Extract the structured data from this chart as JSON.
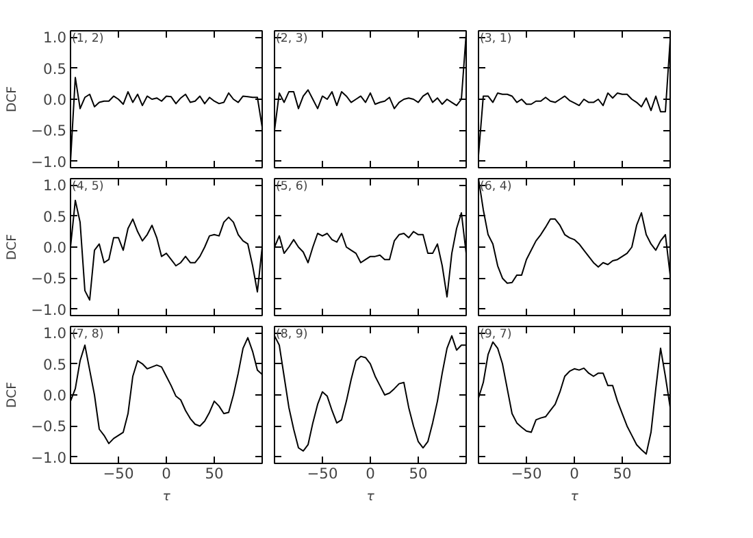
{
  "chart_data": [
    {
      "type": "line",
      "x": [
        -100,
        -95,
        -90,
        -85,
        -80,
        -75,
        -70,
        -65,
        -60,
        -55,
        -50,
        -45,
        -40,
        -35,
        -30,
        -25,
        -20,
        -15,
        -10,
        -5,
        0,
        5,
        10,
        15,
        20,
        25,
        30,
        35,
        40,
        45,
        50,
        55,
        60,
        65,
        70,
        75,
        80,
        85,
        90,
        95,
        100
      ],
      "values": [
        -1.0,
        0.35,
        -0.15,
        0.03,
        0.08,
        -0.12,
        -0.05,
        -0.03,
        -0.03,
        0.05,
        0.0,
        -0.08,
        0.12,
        -0.05,
        0.08,
        -0.1,
        0.05,
        0.0,
        0.02,
        -0.03,
        0.05,
        0.04,
        -0.07,
        0.02,
        0.08,
        -0.05,
        -0.03,
        0.05,
        -0.07,
        0.03,
        -0.03,
        -0.07,
        -0.05,
        0.1,
        0.0,
        -0.05,
        0.05,
        0.04,
        0.03,
        0.03,
        -0.45
      ],
      "color": "#000000",
      "xlim": [
        -100,
        100
      ],
      "ylim": [
        -1.1,
        1.1
      ],
      "yticks": [
        {
          "value": -1,
          "label": "−1.0"
        },
        {
          "value": -0.5,
          "label": "−0.5"
        },
        {
          "value": 0,
          "label": "0.0"
        },
        {
          "value": 0.5,
          "label": "0.5"
        },
        {
          "value": 1,
          "label": "1.0"
        }
      ],
      "xticks": [
        {
          "value": -50,
          "label": null
        },
        {
          "value": 0,
          "label": null
        },
        {
          "value": 50,
          "label": null
        }
      ],
      "ylabel": "DCF",
      "tick_labels": "y",
      "annotations": [
        "(1, 2)"
      ]
    },
    {
      "type": "line",
      "x": [
        -100,
        -95,
        -90,
        -85,
        -80,
        -75,
        -70,
        -65,
        -60,
        -55,
        -50,
        -45,
        -40,
        -35,
        -30,
        -25,
        -20,
        -15,
        -10,
        -5,
        0,
        5,
        10,
        15,
        20,
        25,
        30,
        35,
        40,
        45,
        50,
        55,
        60,
        65,
        70,
        75,
        80,
        85,
        90,
        95,
        100
      ],
      "values": [
        -0.5,
        0.1,
        -0.05,
        0.12,
        0.12,
        -0.15,
        0.05,
        0.15,
        0.0,
        -0.15,
        0.05,
        0.0,
        0.12,
        -0.1,
        0.12,
        0.05,
        -0.05,
        0.0,
        0.05,
        -0.05,
        0.1,
        -0.08,
        -0.05,
        -0.03,
        0.03,
        -0.15,
        -0.05,
        0.0,
        0.02,
        0.0,
        -0.05,
        0.05,
        0.1,
        -0.05,
        0.02,
        -0.08,
        0.0,
        -0.05,
        -0.1,
        0.0,
        1.05
      ],
      "color": "#000000",
      "xlim": [
        -100,
        100
      ],
      "ylim": [
        -1.1,
        1.1
      ],
      "yticks": [
        {
          "value": -1,
          "label": null
        },
        {
          "value": -0.5,
          "label": null
        },
        {
          "value": 0,
          "label": null
        },
        {
          "value": 0.5,
          "label": null
        },
        {
          "value": 1,
          "label": null
        }
      ],
      "xticks": [
        {
          "value": -50,
          "label": null
        },
        {
          "value": 0,
          "label": null
        },
        {
          "value": 50,
          "label": null
        }
      ],
      "tick_labels": false,
      "annotations": [
        "(2, 3)"
      ]
    },
    {
      "type": "line",
      "x": [
        -100,
        -95,
        -90,
        -85,
        -80,
        -75,
        -70,
        -65,
        -60,
        -55,
        -50,
        -45,
        -40,
        -35,
        -30,
        -25,
        -20,
        -15,
        -10,
        -5,
        0,
        5,
        10,
        15,
        20,
        25,
        30,
        35,
        40,
        45,
        50,
        55,
        60,
        65,
        70,
        75,
        80,
        85,
        90,
        95,
        100
      ],
      "values": [
        -0.9,
        0.05,
        0.05,
        -0.05,
        0.1,
        0.08,
        0.08,
        0.05,
        -0.05,
        0.0,
        -0.08,
        -0.08,
        -0.03,
        -0.03,
        0.03,
        -0.03,
        -0.05,
        0.0,
        0.05,
        -0.02,
        -0.06,
        -0.1,
        0.0,
        -0.05,
        -0.05,
        0.0,
        -0.1,
        0.1,
        0.02,
        0.1,
        0.08,
        0.08,
        0.0,
        -0.05,
        -0.12,
        0.02,
        -0.18,
        0.05,
        -0.2,
        -0.2,
        0.95
      ],
      "color": "#000000",
      "xlim": [
        -100,
        100
      ],
      "ylim": [
        -1.1,
        1.1
      ],
      "yticks": [
        {
          "value": -1,
          "label": null
        },
        {
          "value": -0.5,
          "label": null
        },
        {
          "value": 0,
          "label": null
        },
        {
          "value": 0.5,
          "label": null
        },
        {
          "value": 1,
          "label": null
        }
      ],
      "xticks": [
        {
          "value": -50,
          "label": null
        },
        {
          "value": 0,
          "label": null
        },
        {
          "value": 50,
          "label": null
        }
      ],
      "tick_labels": false,
      "annotations": [
        "(3, 1)"
      ]
    },
    {
      "type": "line",
      "x": [
        -100,
        -95,
        -90,
        -85,
        -80,
        -75,
        -70,
        -65,
        -60,
        -55,
        -50,
        -45,
        -40,
        -35,
        -30,
        -25,
        -20,
        -15,
        -10,
        -5,
        0,
        5,
        10,
        15,
        20,
        25,
        30,
        35,
        40,
        45,
        50,
        55,
        60,
        65,
        70,
        75,
        80,
        85,
        90,
        95,
        100
      ],
      "values": [
        0.0,
        0.75,
        0.4,
        -0.7,
        -0.85,
        -0.05,
        0.05,
        -0.25,
        -0.2,
        0.15,
        0.15,
        -0.05,
        0.3,
        0.45,
        0.25,
        0.1,
        0.2,
        0.35,
        0.15,
        -0.15,
        -0.1,
        -0.2,
        -0.3,
        -0.25,
        -0.15,
        -0.25,
        -0.25,
        -0.15,
        0.0,
        0.18,
        0.2,
        0.18,
        0.4,
        0.48,
        0.4,
        0.2,
        0.1,
        0.05,
        -0.3,
        -0.72,
        0.0
      ],
      "color": "#000000",
      "xlim": [
        -100,
        100
      ],
      "ylim": [
        -1.1,
        1.1
      ],
      "yticks": [
        {
          "value": -1,
          "label": "−1.0"
        },
        {
          "value": -0.5,
          "label": "−0.5"
        },
        {
          "value": 0,
          "label": "0.0"
        },
        {
          "value": 0.5,
          "label": "0.5"
        },
        {
          "value": 1,
          "label": "1.0"
        }
      ],
      "xticks": [
        {
          "value": -50,
          "label": null
        },
        {
          "value": 0,
          "label": null
        },
        {
          "value": 50,
          "label": null
        }
      ],
      "ylabel": "DCF",
      "tick_labels": "y",
      "annotations": [
        "(4, 5)"
      ]
    },
    {
      "type": "line",
      "x": [
        -100,
        -95,
        -90,
        -85,
        -80,
        -75,
        -70,
        -65,
        -60,
        -55,
        -50,
        -45,
        -40,
        -35,
        -30,
        -25,
        -20,
        -15,
        -10,
        -5,
        0,
        5,
        10,
        15,
        20,
        25,
        30,
        35,
        40,
        45,
        50,
        55,
        60,
        65,
        70,
        75,
        80,
        85,
        90,
        95,
        100
      ],
      "values": [
        0.0,
        0.18,
        -0.1,
        0.0,
        0.12,
        0.0,
        -0.08,
        -0.25,
        0.0,
        0.22,
        0.18,
        0.22,
        0.12,
        0.08,
        0.22,
        0.0,
        -0.05,
        -0.1,
        -0.25,
        -0.2,
        -0.15,
        -0.15,
        -0.13,
        -0.2,
        -0.2,
        0.1,
        0.2,
        0.22,
        0.15,
        0.25,
        0.2,
        0.2,
        -0.1,
        -0.1,
        0.05,
        -0.3,
        -0.8,
        -0.1,
        0.3,
        0.55,
        -0.1
      ],
      "color": "#000000",
      "xlim": [
        -100,
        100
      ],
      "ylim": [
        -1.1,
        1.1
      ],
      "yticks": [
        {
          "value": -1,
          "label": null
        },
        {
          "value": -0.5,
          "label": null
        },
        {
          "value": 0,
          "label": null
        },
        {
          "value": 0.5,
          "label": null
        },
        {
          "value": 1,
          "label": null
        }
      ],
      "xticks": [
        {
          "value": -50,
          "label": null
        },
        {
          "value": 0,
          "label": null
        },
        {
          "value": 50,
          "label": null
        }
      ],
      "tick_labels": false,
      "annotations": [
        "(5, 6)"
      ]
    },
    {
      "type": "line",
      "x": [
        -100,
        -95,
        -90,
        -85,
        -80,
        -75,
        -70,
        -65,
        -60,
        -55,
        -50,
        -45,
        -40,
        -35,
        -30,
        -25,
        -20,
        -15,
        -10,
        -5,
        0,
        5,
        10,
        15,
        20,
        25,
        30,
        35,
        40,
        45,
        50,
        55,
        60,
        65,
        70,
        75,
        80,
        85,
        90,
        95,
        100
      ],
      "values": [
        1.1,
        0.6,
        0.2,
        0.05,
        -0.3,
        -0.5,
        -0.58,
        -0.57,
        -0.45,
        -0.45,
        -0.2,
        -0.05,
        0.1,
        0.2,
        0.32,
        0.45,
        0.45,
        0.35,
        0.2,
        0.15,
        0.12,
        0.05,
        -0.05,
        -0.15,
        -0.25,
        -0.32,
        -0.25,
        -0.28,
        -0.22,
        -0.2,
        -0.15,
        -0.1,
        0.0,
        0.35,
        0.55,
        0.2,
        0.05,
        -0.05,
        0.1,
        0.2,
        -0.45
      ],
      "color": "#000000",
      "xlim": [
        -100,
        100
      ],
      "ylim": [
        -1.1,
        1.1
      ],
      "yticks": [
        {
          "value": -1,
          "label": null
        },
        {
          "value": -0.5,
          "label": null
        },
        {
          "value": 0,
          "label": null
        },
        {
          "value": 0.5,
          "label": null
        },
        {
          "value": 1,
          "label": null
        }
      ],
      "xticks": [
        {
          "value": -50,
          "label": null
        },
        {
          "value": 0,
          "label": null
        },
        {
          "value": 50,
          "label": null
        }
      ],
      "tick_labels": false,
      "annotations": [
        "(6, 4)"
      ]
    },
    {
      "type": "line",
      "x": [
        -100,
        -95,
        -90,
        -85,
        -80,
        -75,
        -70,
        -65,
        -60,
        -55,
        -50,
        -45,
        -40,
        -35,
        -30,
        -25,
        -20,
        -15,
        -10,
        -5,
        0,
        5,
        10,
        15,
        20,
        25,
        30,
        35,
        40,
        45,
        50,
        55,
        60,
        65,
        70,
        75,
        80,
        85,
        90,
        95,
        100
      ],
      "values": [
        -0.1,
        0.1,
        0.55,
        0.8,
        0.4,
        0.0,
        -0.55,
        -0.65,
        -0.78,
        -0.7,
        -0.65,
        -0.6,
        -0.3,
        0.3,
        0.55,
        0.5,
        0.42,
        0.45,
        0.48,
        0.45,
        0.3,
        0.15,
        -0.02,
        -0.08,
        -0.25,
        -0.38,
        -0.47,
        -0.5,
        -0.42,
        -0.28,
        -0.1,
        -0.18,
        -0.3,
        -0.28,
        0.0,
        0.35,
        0.75,
        0.92,
        0.7,
        0.4,
        0.33
      ],
      "color": "#000000",
      "xlim": [
        -100,
        100
      ],
      "ylim": [
        -1.1,
        1.1
      ],
      "yticks": [
        {
          "value": -1,
          "label": "−1.0"
        },
        {
          "value": -0.5,
          "label": "−0.5"
        },
        {
          "value": 0,
          "label": "0.0"
        },
        {
          "value": 0.5,
          "label": "0.5"
        },
        {
          "value": 1,
          "label": "1.0"
        }
      ],
      "xticks": [
        {
          "value": -50,
          "label": "−50"
        },
        0,
        50
      ],
      "xlabel": "τ",
      "ylabel": "DCF",
      "annotations": [
        "(7, 8)"
      ]
    },
    {
      "type": "line",
      "x": [
        -100,
        -95,
        -90,
        -85,
        -80,
        -75,
        -70,
        -65,
        -60,
        -55,
        -50,
        -45,
        -40,
        -35,
        -30,
        -25,
        -20,
        -15,
        -10,
        -5,
        0,
        5,
        10,
        15,
        20,
        25,
        30,
        35,
        40,
        45,
        50,
        55,
        60,
        65,
        70,
        75,
        80,
        85,
        90,
        95,
        100
      ],
      "values": [
        0.95,
        0.8,
        0.3,
        -0.2,
        -0.55,
        -0.85,
        -0.9,
        -0.8,
        -0.45,
        -0.15,
        0.05,
        -0.02,
        -0.25,
        -0.45,
        -0.4,
        -0.1,
        0.25,
        0.55,
        0.62,
        0.6,
        0.5,
        0.3,
        0.15,
        0.0,
        0.03,
        0.1,
        0.18,
        0.2,
        -0.2,
        -0.5,
        -0.75,
        -0.85,
        -0.75,
        -0.45,
        -0.1,
        0.35,
        0.75,
        0.95,
        0.72,
        0.8,
        0.8
      ],
      "color": "#000000",
      "xlim": [
        -100,
        100
      ],
      "ylim": [
        -1.1,
        1.1
      ],
      "yticks": [
        {
          "value": -1,
          "label": null
        },
        {
          "value": -0.5,
          "label": null
        },
        {
          "value": 0,
          "label": null
        },
        {
          "value": 0.5,
          "label": null
        },
        {
          "value": 1,
          "label": null
        }
      ],
      "xticks": [
        {
          "value": -50,
          "label": "−50"
        },
        0,
        50
      ],
      "xlabel": "τ",
      "tick_labels": "x",
      "annotations": [
        "(8, 9)"
      ]
    },
    {
      "type": "line",
      "x": [
        -100,
        -95,
        -90,
        -85,
        -80,
        -75,
        -70,
        -65,
        -60,
        -55,
        -50,
        -45,
        -40,
        -35,
        -30,
        -25,
        -20,
        -15,
        -10,
        -5,
        0,
        5,
        10,
        15,
        20,
        25,
        30,
        35,
        40,
        45,
        50,
        55,
        60,
        65,
        70,
        75,
        80,
        85,
        90,
        95,
        100
      ],
      "values": [
        -0.05,
        0.2,
        0.65,
        0.85,
        0.75,
        0.5,
        0.1,
        -0.3,
        -0.45,
        -0.52,
        -0.58,
        -0.6,
        -0.4,
        -0.37,
        -0.35,
        -0.25,
        -0.15,
        0.05,
        0.3,
        0.38,
        0.42,
        0.4,
        0.43,
        0.35,
        0.3,
        0.35,
        0.35,
        0.15,
        0.15,
        -0.1,
        -0.3,
        -0.5,
        -0.65,
        -0.8,
        -0.88,
        -0.95,
        -0.6,
        0.1,
        0.75,
        0.3,
        -0.2
      ],
      "color": "#000000",
      "xlim": [
        -100,
        100
      ],
      "ylim": [
        -1.1,
        1.1
      ],
      "yticks": [
        {
          "value": -1,
          "label": null
        },
        {
          "value": -0.5,
          "label": null
        },
        {
          "value": 0,
          "label": null
        },
        {
          "value": 0.5,
          "label": null
        },
        {
          "value": 1,
          "label": null
        }
      ],
      "xticks": [
        {
          "value": -50,
          "label": "−50"
        },
        0,
        50
      ],
      "xlabel": "τ",
      "tick_labels": "x",
      "annotations": [
        "(9, 7)"
      ]
    }
  ]
}
